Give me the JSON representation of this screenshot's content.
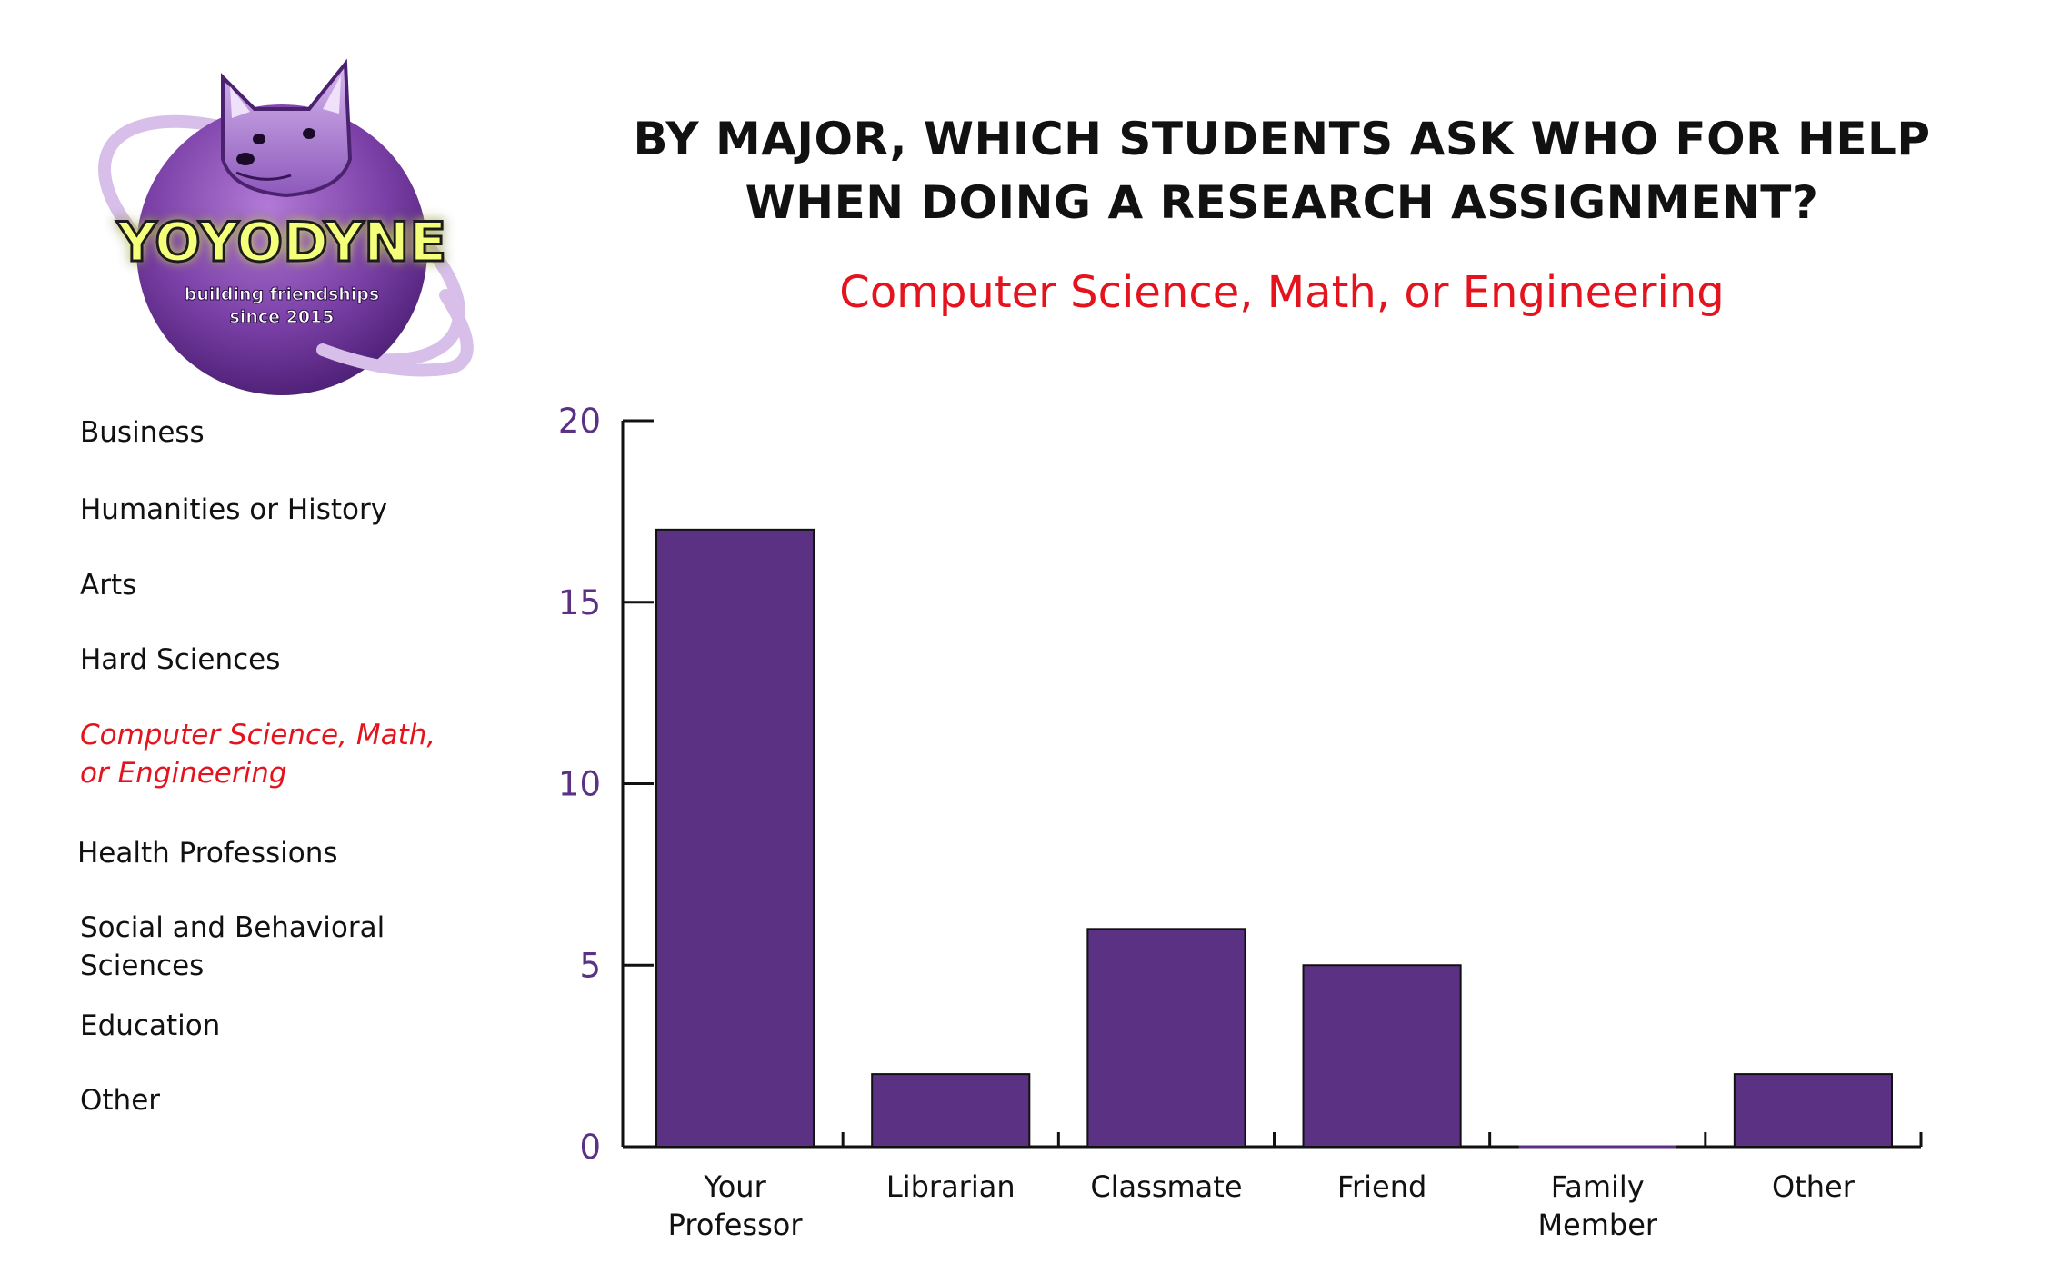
{
  "logo": {
    "wordmark": "YOYODYNE",
    "tagline": "building friendships since 2015",
    "tagline_lines": [
      "building friendships",
      "since 2015"
    ],
    "icon": "doge-planet-icon",
    "colors": {
      "planet": "#7a3fa6",
      "ring": "#c9a6e4",
      "wordmark_fill": "#f4ff7a",
      "wordmark_glow": "#f1ff2a"
    }
  },
  "title_lines": [
    "BY MAJOR, WHICH STUDENTS ASK WHO FOR HELP",
    "WHEN DOING A RESEARCH ASSIGNMENT?"
  ],
  "subtitle": "Computer Science, Math, or Engineering",
  "colors": {
    "accent": "#e4141e",
    "bar": "#5b3184",
    "axis_tick_label": "#5b3184",
    "text": "#111111"
  },
  "nav": {
    "items": [
      {
        "lines": [
          "Business"
        ],
        "active": false
      },
      {
        "lines": [
          "Humanities or History"
        ],
        "active": false
      },
      {
        "lines": [
          "Arts"
        ],
        "active": false
      },
      {
        "lines": [
          "Hard Sciences"
        ],
        "active": false
      },
      {
        "lines": [
          "Computer Science, Math,",
          "or Engineering"
        ],
        "active": true
      },
      {
        "lines": [
          "Health Professions"
        ],
        "active": false
      },
      {
        "lines": [
          "Social and Behavioral",
          "Sciences"
        ],
        "active": false
      },
      {
        "lines": [
          "Education"
        ],
        "active": false
      },
      {
        "lines": [
          "Other"
        ],
        "active": false
      }
    ]
  },
  "chart_data": {
    "type": "bar",
    "title": "BY MAJOR, WHICH STUDENTS ASK WHO FOR HELP WHEN DOING A RESEARCH ASSIGNMENT?",
    "subtitle": "Computer Science, Math, or Engineering",
    "categories": [
      "Your Professor",
      "Librarian",
      "Classmate",
      "Friend",
      "Family Member",
      "Other"
    ],
    "category_label_lines": [
      [
        "Your",
        "Professor"
      ],
      [
        "Librarian"
      ],
      [
        "Classmate"
      ],
      [
        "Friend"
      ],
      [
        "Family",
        "Member"
      ],
      [
        "Other"
      ]
    ],
    "values": [
      17,
      2,
      6,
      5,
      0,
      2
    ],
    "ylim": [
      0,
      20
    ],
    "yticks": [
      0,
      5,
      10,
      15,
      20
    ],
    "xlabel": "",
    "ylabel": "",
    "grid": false,
    "legend": "none"
  }
}
